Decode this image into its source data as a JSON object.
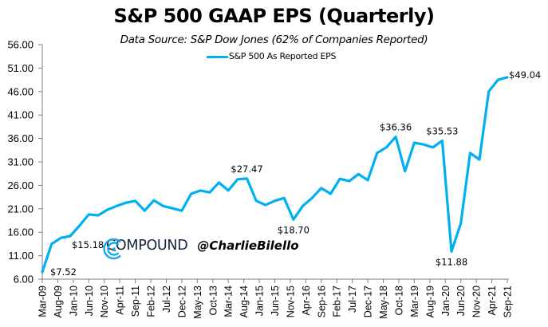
{
  "chart_data": {
    "type": "line",
    "title": "S&P 500 GAAP EPS (Quarterly)",
    "subtitle": "Data Source: S&P Dow Jones (62% of Companies Reported)",
    "xlabel": "",
    "ylabel": "",
    "ylim": [
      6,
      56
    ],
    "yticks": [
      "6.00",
      "11.00",
      "16.00",
      "21.00",
      "26.00",
      "31.00",
      "36.00",
      "41.00",
      "46.00",
      "51.00",
      "56.00"
    ],
    "ytick_values": [
      6,
      11,
      16,
      21,
      26,
      31,
      36,
      41,
      46,
      51,
      56
    ],
    "x": [
      "Mar-09",
      "Jun-09",
      "Sep-09",
      "Dec-09",
      "Mar-10",
      "Jun-10",
      "Sep-10",
      "Dec-10",
      "Mar-11",
      "Jun-11",
      "Sep-11",
      "Dec-11",
      "Mar-12",
      "Jun-12",
      "Sep-12",
      "Dec-12",
      "Mar-13",
      "Jun-13",
      "Sep-13",
      "Dec-13",
      "Mar-14",
      "Jun-14",
      "Sep-14",
      "Dec-14",
      "Mar-15",
      "Jun-15",
      "Sep-15",
      "Dec-15",
      "Mar-16",
      "Jun-16",
      "Sep-16",
      "Dec-16",
      "Mar-17",
      "Jun-17",
      "Sep-17",
      "Dec-17",
      "Mar-18",
      "Jun-18",
      "Sep-18",
      "Dec-18",
      "Mar-19",
      "Jun-19",
      "Sep-19",
      "Dec-19",
      "Mar-20",
      "Jun-20",
      "Sep-20",
      "Dec-20",
      "Mar-21",
      "Jun-21",
      "Sep-21"
    ],
    "xtick_labels": [
      "Mar-09",
      "Aug-09",
      "Jan-10",
      "Jun-10",
      "Nov-10",
      "Apr-11",
      "Sep-11",
      "Feb-12",
      "Jul-12",
      "Dec-12",
      "May-13",
      "Oct-13",
      "Mar-14",
      "Aug-14",
      "Jan-15",
      "Jun-15",
      "Nov-15",
      "Apr-16",
      "Sep-16",
      "Feb-17",
      "Jul-17",
      "Dec-17",
      "May-18",
      "Oct-18",
      "Mar-19",
      "Aug-19",
      "Jan-20",
      "Jun-20",
      "Nov-20",
      "Apr-21",
      "Sep-21"
    ],
    "xtick_months_from_start_step": 5,
    "series": [
      {
        "name": "S&P 500 As Reported EPS",
        "color": "#00b0f0",
        "values": [
          7.52,
          13.5,
          14.8,
          15.18,
          17.4,
          19.8,
          19.6,
          20.8,
          21.6,
          22.3,
          22.7,
          20.6,
          22.8,
          21.6,
          21.1,
          20.6,
          24.2,
          24.9,
          24.5,
          26.6,
          24.9,
          27.3,
          27.47,
          22.7,
          21.8,
          22.7,
          23.3,
          18.7,
          21.6,
          23.3,
          25.4,
          24.2,
          27.4,
          26.9,
          28.4,
          27.1,
          32.9,
          34.1,
          36.36,
          29.0,
          35.1,
          34.7,
          34.1,
          35.53,
          11.88,
          17.9,
          32.9,
          31.5,
          46.0,
          48.5,
          49.04
        ]
      }
    ],
    "annotations": [
      {
        "index": 0,
        "text": "$7.52",
        "position": "right-below"
      },
      {
        "index": 3,
        "text": "$15.18",
        "position": "below"
      },
      {
        "index": 22,
        "text": "$27.47",
        "position": "above"
      },
      {
        "index": 27,
        "text": "$18.70",
        "position": "below"
      },
      {
        "index": 38,
        "text": "$36.36",
        "position": "above"
      },
      {
        "index": 43,
        "text": "$35.53",
        "position": "above"
      },
      {
        "index": 44,
        "text": "$11.88",
        "position": "below"
      },
      {
        "index": 50,
        "text": "$49.04",
        "position": "right"
      }
    ],
    "legend": {
      "placement": "top-center",
      "entries": [
        "S&P 500 As Reported EPS"
      ]
    },
    "grid": false
  },
  "watermark": {
    "brand": "COMPOUND",
    "handle": "@CharlieBilello",
    "logo_icon": "compound-c-logo-icon",
    "brand_color": "#14233c",
    "logo_color": "#1aa7e6"
  }
}
